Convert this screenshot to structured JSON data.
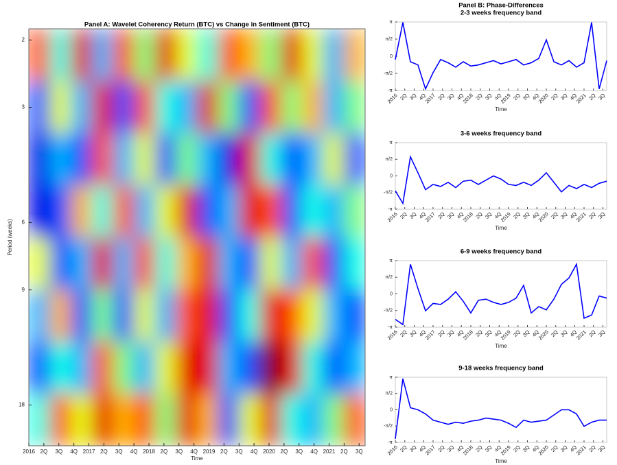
{
  "chart_data": [
    {
      "type": "heatmap",
      "title": "Panel A:  Wavelet Coherency Return (BTC) vs Change in Sentiment (BTC)",
      "xlabel": "Time",
      "ylabel": "Period (weeks)",
      "xlim": [
        2016,
        2021.6
      ],
      "ylim": [
        1.87,
        23
      ],
      "ylog": true,
      "yreverse": true,
      "colormap": "jet",
      "xticks": [
        2016,
        {
          "value": 2016.25,
          "label": "2Q"
        },
        {
          "value": 2016.5,
          "label": "3Q"
        },
        {
          "value": 2016.75,
          "label": "4Q"
        },
        2017,
        {
          "value": 2017.25,
          "label": "2Q"
        },
        {
          "value": 2017.5,
          "label": "3Q"
        },
        {
          "value": 2017.75,
          "label": "4Q"
        },
        2018,
        {
          "value": 2018.25,
          "label": "2Q"
        },
        {
          "value": 2018.5,
          "label": "3Q"
        },
        {
          "value": 2018.75,
          "label": "4Q"
        },
        2019,
        {
          "value": 2019.25,
          "label": "2Q"
        },
        {
          "value": 2019.5,
          "label": "3Q"
        },
        {
          "value": 2019.75,
          "label": "4Q"
        },
        2020,
        {
          "value": 2020.25,
          "label": "2Q"
        },
        {
          "value": 2020.5,
          "label": "3Q"
        },
        {
          "value": 2020.75,
          "label": "4Q"
        },
        2021,
        {
          "value": 2021.25,
          "label": "2Q"
        },
        {
          "value": 2021.5,
          "label": "3Q"
        }
      ],
      "yticks": [
        2,
        3,
        6,
        9,
        18
      ],
      "z": [
        [
          0.8,
          0.4,
          0.9,
          0.3,
          0.8,
          0.5,
          0.9,
          0.6,
          0.4,
          0.8,
          0.7,
          0.5,
          0.9,
          0.6,
          0.3,
          0.7
        ],
        [
          0.2,
          0.6,
          0.3,
          0.9,
          0.2,
          0.8,
          0.4,
          0.3,
          0.9,
          0.5,
          0.2,
          0.8,
          0.5,
          0.7,
          0.3,
          0.5
        ],
        [
          0.1,
          0.3,
          0.2,
          0.8,
          0.3,
          0.6,
          0.2,
          0.5,
          0.3,
          0.1,
          0.9,
          0.4,
          0.2,
          0.3,
          0.6,
          0.2
        ],
        [
          0.1,
          0.2,
          0.7,
          0.4,
          0.8,
          0.3,
          0.6,
          0.9,
          0.2,
          0.3,
          0.9,
          0.8,
          0.2,
          0.4,
          0.3,
          0.5
        ],
        [
          0.6,
          0.2,
          0.3,
          0.9,
          0.3,
          0.8,
          0.4,
          0.7,
          0.9,
          0.3,
          0.2,
          0.6,
          0.3,
          0.8,
          0.2,
          0.4
        ],
        [
          0.3,
          0.7,
          0.2,
          0.5,
          0.2,
          0.6,
          0.3,
          0.8,
          0.9,
          0.2,
          0.4,
          0.9,
          0.8,
          0.6,
          0.3,
          0.2
        ],
        [
          0.2,
          0.4,
          0.3,
          0.8,
          0.5,
          0.3,
          0.6,
          0.9,
          0.9,
          0.3,
          0.2,
          1.0,
          0.9,
          0.4,
          0.2,
          0.3
        ],
        [
          0.4,
          0.8,
          0.6,
          0.9,
          0.7,
          0.8,
          0.5,
          0.9,
          0.7,
          0.2,
          0.6,
          0.9,
          0.4,
          0.3,
          0.5,
          0.8
        ]
      ]
    },
    {
      "type": "line",
      "suptitle": "Panel B:  Phase-Differences",
      "title": "2-3 weeks frequency band",
      "xlabel": "Time",
      "color": "#0000ff",
      "xlim": [
        2016,
        2021.6
      ],
      "ylim": [
        -3.1416,
        3.1416
      ],
      "xticks": [
        2016,
        {
          "value": 2016.25,
          "label": "2Q"
        },
        {
          "value": 2016.5,
          "label": "3Q"
        },
        {
          "value": 2016.75,
          "label": "4Q"
        },
        2017,
        {
          "value": 2017.25,
          "label": "2Q"
        },
        {
          "value": 2017.5,
          "label": "3Q"
        },
        {
          "value": 2017.75,
          "label": "4Q"
        },
        2018,
        {
          "value": 2018.25,
          "label": "2Q"
        },
        {
          "value": 2018.5,
          "label": "3Q"
        },
        {
          "value": 2018.75,
          "label": "4Q"
        },
        2019,
        {
          "value": 2019.25,
          "label": "2Q"
        },
        {
          "value": 2019.5,
          "label": "3Q"
        },
        {
          "value": 2019.75,
          "label": "4Q"
        },
        2020,
        {
          "value": 2020.25,
          "label": "2Q"
        },
        {
          "value": 2020.5,
          "label": "3Q"
        },
        {
          "value": 2020.75,
          "label": "4Q"
        },
        2021,
        {
          "value": 2021.25,
          "label": "2Q"
        },
        {
          "value": 2021.5,
          "label": "3Q"
        }
      ],
      "yticks": [
        {
          "value": -3.1416,
          "label": "-π"
        },
        {
          "value": -1.5708,
          "label": "-π/2"
        },
        0,
        {
          "value": 1.5708,
          "label": "π/2"
        },
        {
          "value": 3.1416,
          "label": "π"
        }
      ],
      "x": [
        2016,
        2016.2,
        2016.4,
        2016.6,
        2016.8,
        2017,
        2017.2,
        2017.4,
        2017.6,
        2017.8,
        2018,
        2018.2,
        2018.4,
        2018.6,
        2018.8,
        2019,
        2019.2,
        2019.4,
        2019.6,
        2019.8,
        2020,
        2020.2,
        2020.4,
        2020.6,
        2020.8,
        2021,
        2021.2,
        2021.4,
        2021.6
      ],
      "values": [
        -0.3,
        3.1,
        -0.5,
        -0.8,
        -3.0,
        -1.5,
        -0.3,
        -0.6,
        -1.0,
        -0.5,
        -0.9,
        -0.8,
        -0.6,
        -0.4,
        -0.7,
        -0.5,
        -0.3,
        -0.8,
        -0.6,
        -0.2,
        1.5,
        -0.5,
        -0.8,
        -0.4,
        -1.0,
        -0.6,
        3.1,
        -3.0,
        -0.4
      ]
    },
    {
      "type": "line",
      "title": "3-6 weeks frequency band",
      "xlabel": "Time",
      "color": "#0000ff",
      "xlim": [
        2016,
        2021.6
      ],
      "ylim": [
        -3.1416,
        3.1416
      ],
      "xticks": [
        2016,
        {
          "value": 2016.25,
          "label": "2Q"
        },
        {
          "value": 2016.5,
          "label": "3Q"
        },
        {
          "value": 2016.75,
          "label": "4Q"
        },
        2017,
        {
          "value": 2017.25,
          "label": "2Q"
        },
        {
          "value": 2017.5,
          "label": "3Q"
        },
        {
          "value": 2017.75,
          "label": "4Q"
        },
        2018,
        {
          "value": 2018.25,
          "label": "2Q"
        },
        {
          "value": 2018.5,
          "label": "3Q"
        },
        {
          "value": 2018.75,
          "label": "4Q"
        },
        2019,
        {
          "value": 2019.25,
          "label": "2Q"
        },
        {
          "value": 2019.5,
          "label": "3Q"
        },
        {
          "value": 2019.75,
          "label": "4Q"
        },
        2020,
        {
          "value": 2020.25,
          "label": "2Q"
        },
        {
          "value": 2020.5,
          "label": "3Q"
        },
        {
          "value": 2020.75,
          "label": "4Q"
        },
        2021,
        {
          "value": 2021.25,
          "label": "2Q"
        },
        {
          "value": 2021.5,
          "label": "3Q"
        }
      ],
      "yticks": [
        {
          "value": -3.1416,
          "label": "-π"
        },
        {
          "value": -1.5708,
          "label": "-π/2"
        },
        0,
        {
          "value": 1.5708,
          "label": "π/2"
        },
        {
          "value": 3.1416,
          "label": "π"
        }
      ],
      "x": [
        2016,
        2016.2,
        2016.4,
        2016.6,
        2016.8,
        2017,
        2017.2,
        2017.4,
        2017.6,
        2017.8,
        2018,
        2018.2,
        2018.4,
        2018.6,
        2018.8,
        2019,
        2019.2,
        2019.4,
        2019.6,
        2019.8,
        2020,
        2020.2,
        2020.4,
        2020.6,
        2020.8,
        2021,
        2021.2,
        2021.4,
        2021.6
      ],
      "values": [
        -1.4,
        -2.6,
        1.8,
        0.3,
        -1.3,
        -0.8,
        -1.0,
        -0.6,
        -1.1,
        -0.5,
        -0.4,
        -0.8,
        -0.4,
        0,
        -0.3,
        -0.8,
        -0.9,
        -0.6,
        -0.9,
        -0.4,
        0.3,
        -0.6,
        -1.5,
        -0.9,
        -1.2,
        -0.8,
        -1.1,
        -0.7,
        -0.5
      ]
    },
    {
      "type": "line",
      "title": "6-9 weeks frequency band",
      "xlabel": "Time",
      "color": "#0000ff",
      "xlim": [
        2016,
        2021.6
      ],
      "ylim": [
        -3.1416,
        3.1416
      ],
      "xticks": [
        2016,
        {
          "value": 2016.25,
          "label": "2Q"
        },
        {
          "value": 2016.5,
          "label": "3Q"
        },
        {
          "value": 2016.75,
          "label": "4Q"
        },
        2017,
        {
          "value": 2017.25,
          "label": "2Q"
        },
        {
          "value": 2017.5,
          "label": "3Q"
        },
        {
          "value": 2017.75,
          "label": "4Q"
        },
        2018,
        {
          "value": 2018.25,
          "label": "2Q"
        },
        {
          "value": 2018.5,
          "label": "3Q"
        },
        {
          "value": 2018.75,
          "label": "4Q"
        },
        2019,
        {
          "value": 2019.25,
          "label": "2Q"
        },
        {
          "value": 2019.5,
          "label": "3Q"
        },
        {
          "value": 2019.75,
          "label": "4Q"
        },
        2020,
        {
          "value": 2020.25,
          "label": "2Q"
        },
        {
          "value": 2020.5,
          "label": "3Q"
        },
        {
          "value": 2020.75,
          "label": "4Q"
        },
        2021,
        {
          "value": 2021.25,
          "label": "2Q"
        },
        {
          "value": 2021.5,
          "label": "3Q"
        }
      ],
      "yticks": [
        {
          "value": -3.1416,
          "label": "-π"
        },
        {
          "value": -1.5708,
          "label": "-π/2"
        },
        0,
        {
          "value": 1.5708,
          "label": "π/2"
        },
        {
          "value": 3.1416,
          "label": "π"
        }
      ],
      "x": [
        2016,
        2016.2,
        2016.4,
        2016.6,
        2016.8,
        2017,
        2017.2,
        2017.4,
        2017.6,
        2017.8,
        2018,
        2018.2,
        2018.4,
        2018.6,
        2018.8,
        2019,
        2019.2,
        2019.4,
        2019.6,
        2019.8,
        2020,
        2020.2,
        2020.4,
        2020.6,
        2020.8,
        2021,
        2021.2,
        2021.4,
        2021.6
      ],
      "values": [
        -2.4,
        -2.9,
        2.8,
        0.5,
        -1.6,
        -0.9,
        -1.0,
        -0.5,
        0.2,
        -0.7,
        -1.8,
        -0.6,
        -0.5,
        -0.8,
        -1.0,
        -0.8,
        -0.4,
        0.8,
        -1.8,
        -1.2,
        -1.5,
        -0.5,
        0.9,
        1.5,
        2.8,
        -2.3,
        -2.0,
        -0.2,
        -0.4
      ]
    },
    {
      "type": "line",
      "title": "9-18 weeks frequency band",
      "xlabel": "Time",
      "color": "#0000ff",
      "xlim": [
        2016,
        2021.6
      ],
      "ylim": [
        -3.1416,
        3.1416
      ],
      "xticks": [
        2016,
        {
          "value": 2016.25,
          "label": "2Q"
        },
        {
          "value": 2016.5,
          "label": "3Q"
        },
        {
          "value": 2016.75,
          "label": "4Q"
        },
        2017,
        {
          "value": 2017.25,
          "label": "2Q"
        },
        {
          "value": 2017.5,
          "label": "3Q"
        },
        {
          "value": 2017.75,
          "label": "4Q"
        },
        2018,
        {
          "value": 2018.25,
          "label": "2Q"
        },
        {
          "value": 2018.5,
          "label": "3Q"
        },
        {
          "value": 2018.75,
          "label": "4Q"
        },
        2019,
        {
          "value": 2019.25,
          "label": "2Q"
        },
        {
          "value": 2019.5,
          "label": "3Q"
        },
        {
          "value": 2019.75,
          "label": "4Q"
        },
        2020,
        {
          "value": 2020.25,
          "label": "2Q"
        },
        {
          "value": 2020.5,
          "label": "3Q"
        },
        {
          "value": 2020.75,
          "label": "4Q"
        },
        2021,
        {
          "value": 2021.25,
          "label": "2Q"
        },
        {
          "value": 2021.5,
          "label": "3Q"
        }
      ],
      "yticks": [
        {
          "value": -3.1416,
          "label": "-π"
        },
        {
          "value": -1.5708,
          "label": "-π/2"
        },
        0,
        {
          "value": 1.5708,
          "label": "π/2"
        },
        {
          "value": 3.1416,
          "label": "π"
        }
      ],
      "x": [
        2016,
        2016.2,
        2016.4,
        2016.6,
        2016.8,
        2017,
        2017.2,
        2017.4,
        2017.6,
        2017.8,
        2018,
        2018.2,
        2018.4,
        2018.6,
        2018.8,
        2019,
        2019.2,
        2019.4,
        2019.6,
        2019.8,
        2020,
        2020.2,
        2020.4,
        2020.6,
        2020.8,
        2021,
        2021.2,
        2021.4,
        2021.6
      ],
      "values": [
        -2.8,
        3.0,
        0.2,
        0,
        -0.4,
        -1.0,
        -1.2,
        -1.4,
        -1.2,
        -1.3,
        -1.1,
        -1.0,
        -0.8,
        -0.9,
        -1.0,
        -1.3,
        -1.7,
        -1.0,
        -1.2,
        -1.1,
        -1.0,
        -0.5,
        0,
        0,
        -0.4,
        -1.6,
        -1.2,
        -1.0,
        -1.0
      ]
    }
  ]
}
